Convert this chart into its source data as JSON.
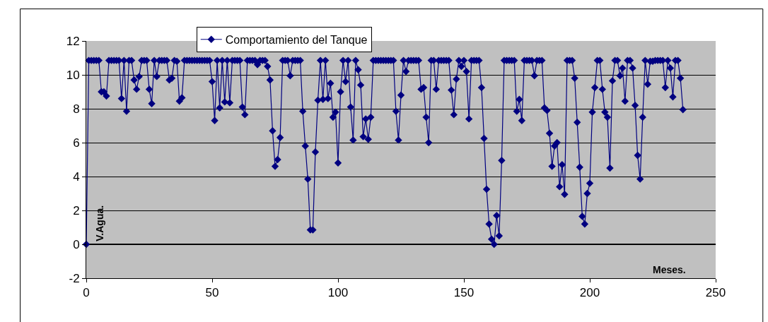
{
  "chart_data": {
    "type": "line",
    "xlabel": "Meses.",
    "ylabel": "V.Agua.",
    "xlim": [
      0,
      250
    ],
    "xticks": [
      0,
      50,
      100,
      150,
      200,
      250
    ],
    "ylim": [
      -2,
      12
    ],
    "yticks": [
      -2,
      0,
      2,
      4,
      6,
      8,
      10,
      12
    ],
    "grid": "y",
    "legend": "top left",
    "marker": "diamond",
    "line_style": "solid",
    "series": [
      {
        "name": "Comportamiento del Tanque",
        "color": "#000080",
        "x": [
          0,
          1,
          2,
          3,
          4,
          5,
          6,
          7,
          8,
          9,
          10,
          11,
          12,
          13,
          14,
          15,
          16,
          17,
          18,
          19,
          20,
          21,
          22,
          23,
          24,
          25,
          26,
          27,
          28,
          29,
          30,
          31,
          32,
          33,
          34,
          35,
          36,
          37,
          38,
          39,
          40,
          41,
          42,
          43,
          44,
          45,
          46,
          47,
          48,
          49,
          50,
          51,
          52,
          53,
          54,
          55,
          56,
          57,
          58,
          59,
          60,
          61,
          62,
          63,
          64,
          65,
          66,
          67,
          68,
          69,
          70,
          71,
          72,
          73,
          74,
          75,
          76,
          77,
          78,
          79,
          80,
          81,
          82,
          83,
          84,
          85,
          86,
          87,
          88,
          89,
          90,
          91,
          92,
          93,
          94,
          95,
          96,
          97,
          98,
          99,
          100,
          101,
          102,
          103,
          104,
          105,
          106,
          107,
          108,
          109,
          110,
          111,
          112,
          113,
          114,
          115,
          116,
          117,
          118,
          119,
          120,
          121,
          122,
          123,
          124,
          125,
          126,
          127,
          128,
          129,
          130,
          131,
          132,
          133,
          134,
          135,
          136,
          137,
          138,
          139,
          140,
          141,
          142,
          143,
          144,
          145,
          146,
          147,
          148,
          149,
          150,
          151,
          152,
          153,
          154,
          155,
          156,
          157,
          158,
          159,
          160,
          161,
          162,
          163,
          164,
          165,
          166,
          167,
          168,
          169,
          170,
          171,
          172,
          173,
          174,
          175,
          176,
          177,
          178,
          179,
          180,
          181,
          182,
          183,
          184,
          185,
          186,
          187,
          188,
          189,
          190,
          191,
          192,
          193,
          194,
          195,
          196,
          197,
          198,
          199,
          200,
          201,
          202,
          203,
          204,
          205,
          206,
          207,
          208,
          209,
          210,
          211,
          212,
          213,
          214,
          215,
          216,
          217,
          218,
          219,
          220,
          221,
          222,
          223,
          224,
          225,
          226,
          227,
          228,
          229,
          230,
          231,
          232,
          233,
          234,
          235,
          236,
          237
        ],
        "values": [
          0,
          10.85,
          10.85,
          10.85,
          10.85,
          10.85,
          9.0,
          9.0,
          8.75,
          10.85,
          10.85,
          10.85,
          10.85,
          10.85,
          8.6,
          10.85,
          7.85,
          10.85,
          10.85,
          9.7,
          9.15,
          9.9,
          10.85,
          10.85,
          10.85,
          9.15,
          8.3,
          10.85,
          9.9,
          10.85,
          10.85,
          10.85,
          10.85,
          9.7,
          9.8,
          10.85,
          10.8,
          8.45,
          8.65,
          10.85,
          10.85,
          10.85,
          10.85,
          10.85,
          10.85,
          10.85,
          10.85,
          10.85,
          10.85,
          10.85,
          9.6,
          7.3,
          10.85,
          8.05,
          10.85,
          8.4,
          10.85,
          8.35,
          10.85,
          10.85,
          10.85,
          10.85,
          8.1,
          7.65,
          10.85,
          10.85,
          10.85,
          10.85,
          10.6,
          10.85,
          10.85,
          10.85,
          10.5,
          9.7,
          6.7,
          4.6,
          5.0,
          6.3,
          10.85,
          10.85,
          10.85,
          9.95,
          10.85,
          10.85,
          10.85,
          10.85,
          7.85,
          5.8,
          3.85,
          0.85,
          0.85,
          5.45,
          8.5,
          10.85,
          8.55,
          10.85,
          8.6,
          9.5,
          7.5,
          7.8,
          4.8,
          9.0,
          10.85,
          9.6,
          10.85,
          8.1,
          6.15,
          10.85,
          10.3,
          9.4,
          6.35,
          7.4,
          6.2,
          7.5,
          10.85,
          10.85,
          10.85,
          10.85,
          10.85,
          10.85,
          10.85,
          10.85,
          10.85,
          7.85,
          6.15,
          8.8,
          10.85,
          10.2,
          10.85,
          10.85,
          10.85,
          10.85,
          10.85,
          9.15,
          9.25,
          7.5,
          6.0,
          10.85,
          10.85,
          9.15,
          10.85,
          10.85,
          10.85,
          10.85,
          10.85,
          9.1,
          7.65,
          9.75,
          10.85,
          10.5,
          10.85,
          10.2,
          7.4,
          10.85,
          10.85,
          10.85,
          10.85,
          9.25,
          6.25,
          3.25,
          1.2,
          0.3,
          0.0,
          1.7,
          0.5,
          4.95,
          10.85,
          10.85,
          10.85,
          10.85,
          10.85,
          7.85,
          8.55,
          7.3,
          10.85,
          10.85,
          10.85,
          10.85,
          9.95,
          10.85,
          10.85,
          10.85,
          8.05,
          7.9,
          6.55,
          4.6,
          5.8,
          6.0,
          3.4,
          4.7,
          2.95,
          10.85,
          10.85,
          10.85,
          9.8,
          7.2,
          4.55,
          1.65,
          1.2,
          3.0,
          3.6,
          7.8,
          9.25,
          10.85,
          10.85,
          9.15,
          7.8,
          7.5,
          4.5,
          9.65,
          10.85,
          10.85,
          9.95,
          10.4,
          8.45,
          10.85,
          10.85,
          10.4,
          8.2,
          5.25,
          3.85,
          7.5,
          10.85,
          9.45,
          10.8,
          10.8,
          10.85,
          10.85,
          10.85,
          10.85,
          9.25,
          10.85,
          10.4,
          8.7,
          10.85,
          10.85,
          9.8,
          7.95
        ]
      }
    ]
  }
}
